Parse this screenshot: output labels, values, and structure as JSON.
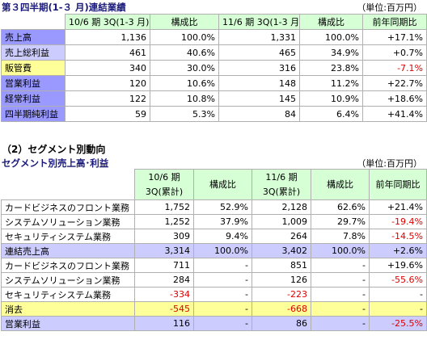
{
  "section1": {
    "title": "第３四半期(1-３ 月)連結業績",
    "unit": "（単位:百万円）",
    "headers": [
      "10/6 期 3Q(1-3 月)",
      "構成比",
      "11/6 期 3Q(1-3 月)",
      "構成比",
      "前年同期比"
    ],
    "rows": [
      {
        "label": "売上高",
        "v": [
          "1,136",
          "100.0%",
          "1,331",
          "100.0%",
          "+17.1%"
        ]
      },
      {
        "label": "売上総利益",
        "v": [
          "461",
          "40.6%",
          "465",
          "34.9%",
          "+0.7%"
        ]
      },
      {
        "label": "販管費",
        "v": [
          "340",
          "30.0%",
          "316",
          "23.8%",
          "-7.1%"
        ]
      },
      {
        "label": "営業利益",
        "v": [
          "120",
          "10.6%",
          "148",
          "11.2%",
          "+22.7%"
        ]
      },
      {
        "label": "経常利益",
        "v": [
          "122",
          "10.8%",
          "145",
          "10.9%",
          "+18.6%"
        ]
      },
      {
        "label": "四半期純利益",
        "v": [
          "59",
          "5.3%",
          "84",
          "6.4%",
          "+41.4%"
        ]
      }
    ]
  },
  "section2": {
    "heading": "（2）セグメント別動向",
    "title": "セグメント別売上高･利益",
    "unit": "（単位:百万円）",
    "headers": [
      "10/6 期\n3Q(累計)",
      "構成比",
      "11/6 期\n3Q(累計)",
      "構成比",
      "前年同期比"
    ],
    "rows": [
      {
        "label": "カードビジネスのフロント業務",
        "v": [
          "1,752",
          "52.9%",
          "2,128",
          "62.6%",
          "+21.4%"
        ]
      },
      {
        "label": "システムソリューション業務",
        "v": [
          "1,252",
          "37.9%",
          "1,009",
          "29.7%",
          "-19.4%"
        ]
      },
      {
        "label": "セキュリティシステム業務",
        "v": [
          "309",
          "9.4%",
          "264",
          "7.8%",
          "-14.5%"
        ]
      },
      {
        "label": "連結売上高",
        "v": [
          "3,314",
          "100.0%",
          "3,402",
          "100.0%",
          "+2.6%"
        ]
      },
      {
        "label": "カードビジネスのフロント業務",
        "v": [
          "711",
          "-",
          "851",
          "-",
          "+19.6%"
        ]
      },
      {
        "label": "システムソリューション業務",
        "v": [
          "284",
          "-",
          "126",
          "-",
          "-55.6%"
        ]
      },
      {
        "label": "セキュリティシステム業務",
        "v": [
          "-334",
          "-",
          "-223",
          "-",
          "-"
        ]
      },
      {
        "label": "消去",
        "v": [
          "-545",
          "-",
          "-668",
          "-",
          "-"
        ]
      },
      {
        "label": "営業利益",
        "v": [
          "116",
          "-",
          "86",
          "-",
          "-25.5%"
        ]
      }
    ]
  },
  "colors": {
    "label_blue": "#9999ff",
    "label_lightblue": "#ccccff",
    "label_yellow": "#ffff99",
    "header_green": "#d6ffd6",
    "negative_red": "#e00000"
  }
}
